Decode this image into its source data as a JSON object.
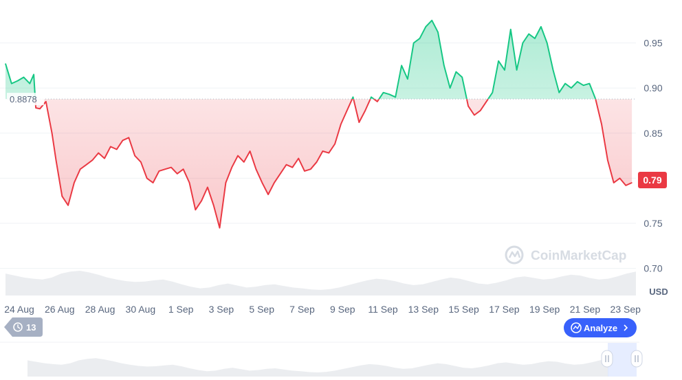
{
  "chart_data": {
    "type": "area",
    "baseline": 0.8878,
    "baseline_label": "0.8878",
    "current_value_label": "0.79",
    "unit_label": "USD",
    "ylim": [
      0.67,
      0.99
    ],
    "yticks": [
      0.7,
      0.75,
      0.8,
      0.85,
      0.9,
      0.95
    ],
    "ytick_labels": [
      "0.70",
      "0.75",
      "0.80",
      "0.85",
      "0.90",
      "0.95"
    ],
    "x_tick_labels": [
      "24 Aug",
      "26 Aug",
      "28 Aug",
      "30 Aug",
      "1 Sep",
      "3 Sep",
      "5 Sep",
      "7 Sep",
      "9 Sep",
      "11 Sep",
      "13 Sep",
      "15 Sep",
      "17 Sep",
      "19 Sep",
      "21 Sep",
      "23 Sep"
    ],
    "x_range_days": [
      0,
      31.2
    ],
    "series": [
      {
        "x": [
          0,
          0.3,
          0.6,
          0.9,
          1.2,
          1.4,
          1.5,
          1.7,
          2.0,
          2.3,
          2.5,
          2.8,
          3.1,
          3.4,
          3.7,
          4.0,
          4.3,
          4.6,
          4.9,
          5.2,
          5.5,
          5.8,
          6.1,
          6.4,
          6.7,
          7.0,
          7.3,
          7.6,
          7.9,
          8.2,
          8.5,
          8.8,
          9.1,
          9.4,
          9.7,
          10.0,
          10.3,
          10.6,
          10.9,
          11.2,
          11.5,
          11.8,
          12.1,
          12.4,
          12.7,
          13.0,
          13.3,
          13.6,
          13.9,
          14.2,
          14.5,
          14.8,
          15.1,
          15.4,
          15.7,
          16.0,
          16.3,
          16.6,
          16.9,
          17.2,
          17.5,
          17.8,
          18.1,
          18.4,
          18.7,
          19.0,
          19.3,
          19.6,
          19.9,
          20.2,
          20.5,
          20.8,
          21.1,
          21.4,
          21.7,
          22.0,
          22.3,
          22.6,
          22.9,
          23.2,
          23.5,
          23.8,
          24.1,
          24.4,
          24.7,
          25.0,
          25.3,
          25.6,
          25.9,
          26.2,
          26.5,
          26.8,
          27.1,
          27.4,
          27.7,
          28.0,
          28.3,
          28.6,
          28.9,
          29.2,
          29.5,
          29.8,
          30.1,
          30.4,
          30.7,
          31.0
        ],
        "values": [
          0.927,
          0.905,
          0.908,
          0.912,
          0.905,
          0.915,
          0.878,
          0.877,
          0.885,
          0.85,
          0.82,
          0.78,
          0.77,
          0.795,
          0.81,
          0.815,
          0.82,
          0.828,
          0.822,
          0.835,
          0.832,
          0.842,
          0.845,
          0.825,
          0.818,
          0.8,
          0.795,
          0.808,
          0.81,
          0.812,
          0.805,
          0.81,
          0.795,
          0.765,
          0.775,
          0.79,
          0.77,
          0.745,
          0.795,
          0.812,
          0.825,
          0.818,
          0.83,
          0.81,
          0.795,
          0.782,
          0.795,
          0.805,
          0.815,
          0.812,
          0.822,
          0.808,
          0.81,
          0.818,
          0.83,
          0.828,
          0.838,
          0.86,
          0.875,
          0.89,
          0.862,
          0.875,
          0.89,
          0.885,
          0.895,
          0.893,
          0.89,
          0.925,
          0.91,
          0.95,
          0.955,
          0.968,
          0.975,
          0.962,
          0.925,
          0.9,
          0.918,
          0.912,
          0.88,
          0.87,
          0.875,
          0.885,
          0.895,
          0.93,
          0.92,
          0.965,
          0.92,
          0.95,
          0.96,
          0.955,
          0.968,
          0.95,
          0.92,
          0.895,
          0.905,
          0.9,
          0.907,
          0.903,
          0.905,
          0.888,
          0.86,
          0.82,
          0.795,
          0.8,
          0.792,
          0.795
        ]
      }
    ],
    "volume_values": [
      0.55,
      0.5,
      0.45,
      0.42,
      0.4,
      0.45,
      0.55,
      0.6,
      0.62,
      0.58,
      0.52,
      0.45,
      0.4,
      0.36,
      0.34,
      0.35,
      0.38,
      0.4,
      0.35,
      0.28,
      0.22,
      0.18,
      0.2,
      0.26,
      0.3,
      0.25,
      0.2,
      0.22,
      0.26,
      0.28,
      0.24,
      0.2,
      0.18,
      0.15,
      0.14,
      0.16,
      0.2,
      0.26,
      0.32,
      0.38,
      0.42,
      0.4,
      0.36,
      0.3,
      0.26,
      0.28,
      0.34,
      0.4,
      0.45,
      0.42,
      0.36,
      0.3,
      0.28,
      0.32,
      0.38,
      0.45,
      0.48,
      0.44,
      0.4,
      0.42,
      0.48,
      0.52,
      0.5,
      0.44,
      0.4,
      0.42,
      0.48,
      0.55,
      0.6
    ],
    "watermark": "CoinMarketCap",
    "range_badge_label": "13",
    "analyze_button_label": "Analyze",
    "colors": {
      "positive": "#16c784",
      "negative": "#ea3943",
      "grid": "#eff2f5",
      "axis_text": "#58667e",
      "volume": "#e6e8ec",
      "badge_bg": "#a6b0c3",
      "analyze_bg": "#3861fb"
    }
  }
}
